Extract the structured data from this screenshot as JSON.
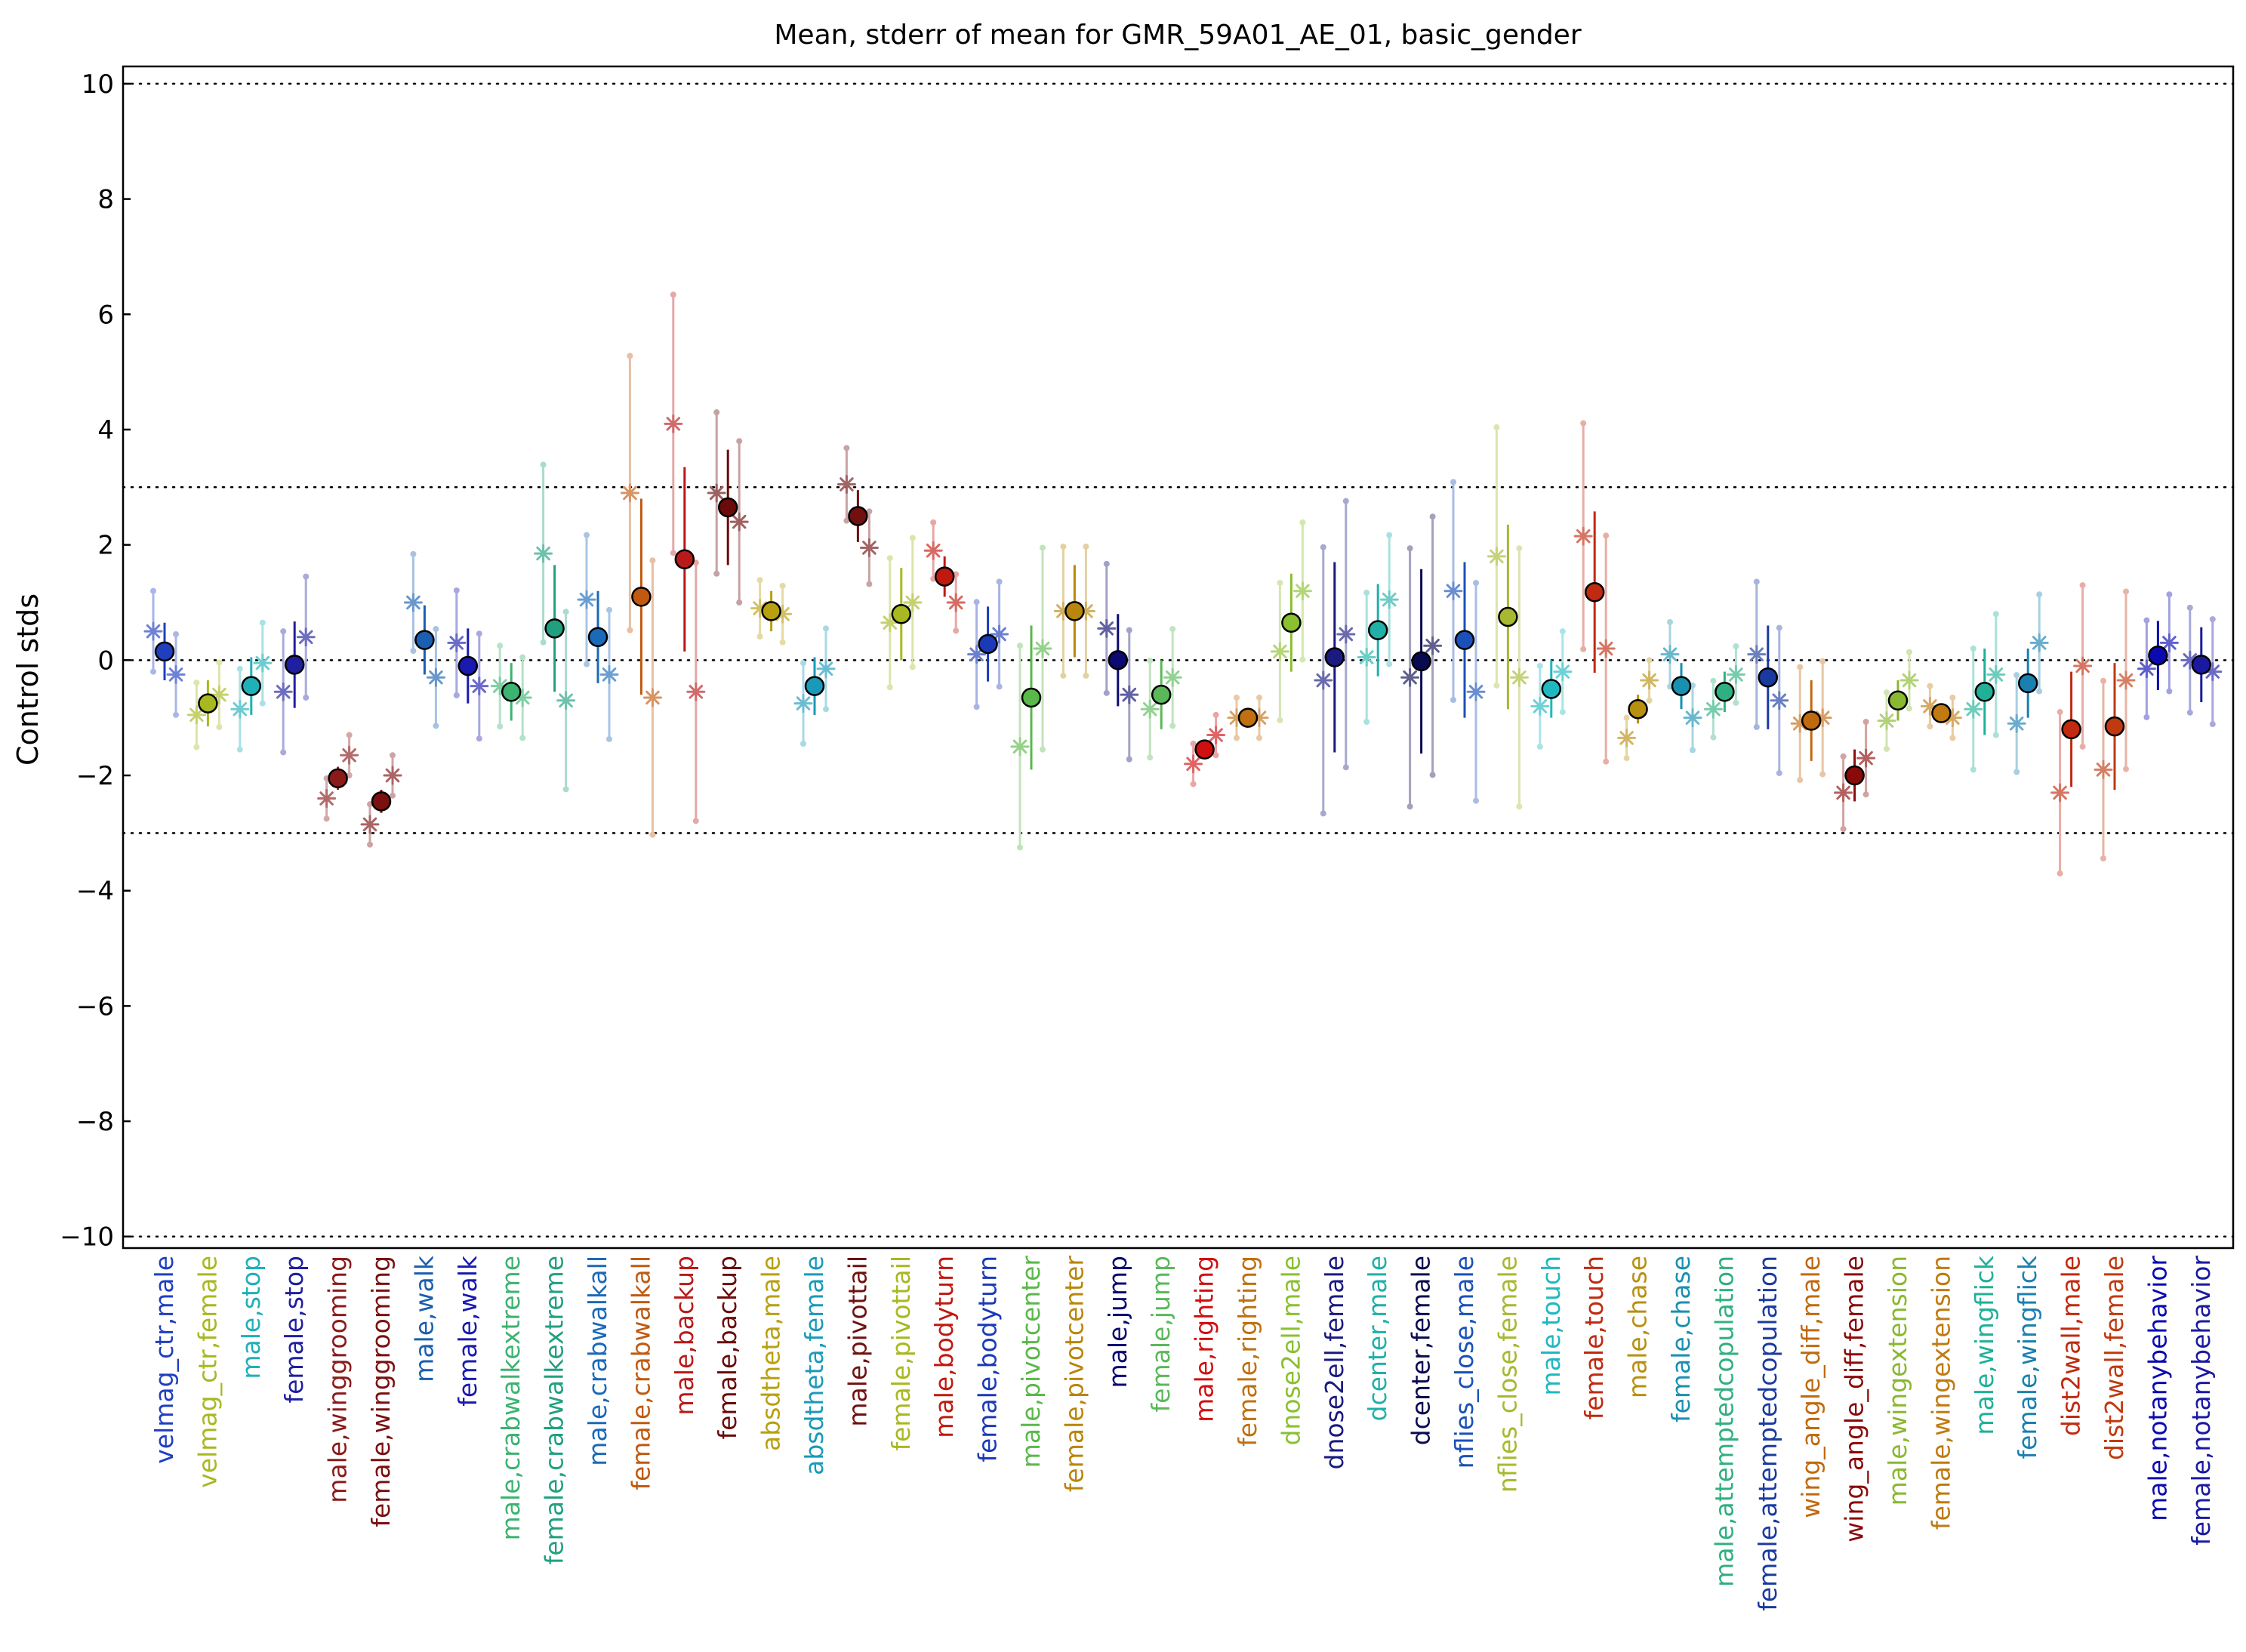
{
  "chart_data": {
    "type": "scatter",
    "title": "Mean, stderr of mean for GMR_59A01_AE_01, basic_gender",
    "ylabel": "Control stds",
    "xlabel": "",
    "ylim": [
      -10.2,
      10.3
    ],
    "yticks": [
      10,
      8,
      6,
      4,
      2,
      0,
      -2,
      -4,
      -6,
      -8,
      -10
    ],
    "ytick_labels": [
      "10",
      "8",
      "6",
      "4",
      "2",
      "0",
      "−2",
      "−4",
      "−6",
      "−8",
      "−10"
    ],
    "reference_lines": [
      10,
      3,
      0,
      -3,
      -10
    ],
    "grid": false,
    "legend": "none",
    "categories": [
      {
        "label": "velmag_ctr,male",
        "mean": 0.15,
        "sem": 0.5,
        "color": "#1f3fbf",
        "stars": [
          0.5,
          -0.25
        ]
      },
      {
        "label": "velmag_ctr,female",
        "mean": -0.75,
        "sem": 0.4,
        "color": "#a8b820",
        "stars": [
          -0.95,
          -0.6
        ]
      },
      {
        "label": "male,stop",
        "mean": -0.45,
        "sem": 0.5,
        "color": "#1fb0b8",
        "stars": [
          -0.85,
          -0.05
        ]
      },
      {
        "label": "female,stop",
        "mean": -0.08,
        "sem": 0.75,
        "color": "#1f1fa0",
        "stars": [
          -0.55,
          0.4
        ]
      },
      {
        "label": "male,winggrooming",
        "mean": -2.05,
        "sem": 0.2,
        "color": "#8b1a1a",
        "stars": [
          -2.4,
          -1.65
        ]
      },
      {
        "label": "female,winggrooming",
        "mean": -2.45,
        "sem": 0.2,
        "color": "#7a1010",
        "stars": [
          -2.85,
          -2.0
        ]
      },
      {
        "label": "male,walk",
        "mean": 0.35,
        "sem": 0.6,
        "color": "#1a5fb0",
        "stars": [
          1.0,
          -0.3
        ]
      },
      {
        "label": "female,walk",
        "mean": -0.1,
        "sem": 0.65,
        "color": "#1a1ab0",
        "stars": [
          0.3,
          -0.45
        ]
      },
      {
        "label": "male,crabwalkextreme",
        "mean": -0.55,
        "sem": 0.5,
        "color": "#3cb371",
        "stars": [
          -0.45,
          -0.65
        ]
      },
      {
        "label": "female,crabwalkextreme",
        "mean": 0.55,
        "sem": 1.1,
        "color": "#20a080",
        "stars": [
          1.85,
          -0.7
        ]
      },
      {
        "label": "male,crabwalkall",
        "mean": 0.4,
        "sem": 0.8,
        "color": "#1a6ab8",
        "stars": [
          1.05,
          -0.25
        ]
      },
      {
        "label": "female,crabwalkall",
        "mean": 1.1,
        "sem": 1.7,
        "color": "#c05a10",
        "stars": [
          2.9,
          -0.65
        ]
      },
      {
        "label": "male,backup",
        "mean": 1.75,
        "sem": 1.6,
        "color": "#b81a1a",
        "stars": [
          4.1,
          -0.55
        ]
      },
      {
        "label": "female,backup",
        "mean": 2.65,
        "sem": 1.0,
        "color": "#6a0a0a",
        "stars": [
          2.9,
          2.4
        ]
      },
      {
        "label": "absdtheta,male",
        "mean": 0.85,
        "sem": 0.35,
        "color": "#b8a010",
        "stars": [
          0.9,
          0.8
        ]
      },
      {
        "label": "absdtheta,female",
        "mean": -0.45,
        "sem": 0.5,
        "color": "#1a9ab8",
        "stars": [
          -0.75,
          -0.15
        ]
      },
      {
        "label": "male,pivottail",
        "mean": 2.5,
        "sem": 0.45,
        "color": "#701010",
        "stars": [
          3.05,
          1.95
        ]
      },
      {
        "label": "female,pivottail",
        "mean": 0.8,
        "sem": 0.8,
        "color": "#a8b820",
        "stars": [
          0.65,
          1.0
        ]
      },
      {
        "label": "male,bodyturn",
        "mean": 1.45,
        "sem": 0.35,
        "color": "#c01a10",
        "stars": [
          1.9,
          1.0
        ]
      },
      {
        "label": "female,bodyturn",
        "mean": 0.28,
        "sem": 0.65,
        "color": "#1a3ab8",
        "stars": [
          0.1,
          0.45
        ]
      },
      {
        "label": "male,pivotcenter",
        "mean": -0.65,
        "sem": 1.25,
        "color": "#5ab84a",
        "stars": [
          -1.5,
          0.2
        ]
      },
      {
        "label": "female,pivotcenter",
        "mean": 0.85,
        "sem": 0.8,
        "color": "#b8860b",
        "stars": [
          0.85,
          0.85
        ]
      },
      {
        "label": "male,jump",
        "mean": 0.0,
        "sem": 0.8,
        "color": "#0a0a70",
        "stars": [
          0.55,
          -0.6
        ]
      },
      {
        "label": "female,jump",
        "mean": -0.6,
        "sem": 0.6,
        "color": "#5ab85a",
        "stars": [
          -0.85,
          -0.3
        ]
      },
      {
        "label": "male,righting",
        "mean": -1.55,
        "sem": 0.12,
        "color": "#d01010",
        "stars": [
          -1.8,
          -1.3
        ]
      },
      {
        "label": "female,righting",
        "mean": -1.0,
        "sem": 0.12,
        "color": "#c07010",
        "stars": [
          -1.0,
          -1.0
        ]
      },
      {
        "label": "dnose2ell,male",
        "mean": 0.65,
        "sem": 0.85,
        "color": "#8ac030",
        "stars": [
          0.15,
          1.2
        ]
      },
      {
        "label": "dnose2ell,female",
        "mean": 0.05,
        "sem": 1.65,
        "color": "#1a1a80",
        "stars": [
          -0.35,
          0.45
        ]
      },
      {
        "label": "dcenter,male",
        "mean": 0.52,
        "sem": 0.8,
        "color": "#20b0a8",
        "stars": [
          0.05,
          1.05
        ]
      },
      {
        "label": "dcenter,female",
        "mean": -0.02,
        "sem": 1.6,
        "color": "#0a0a50",
        "stars": [
          -0.3,
          0.25
        ]
      },
      {
        "label": "nflies_close,male",
        "mean": 0.35,
        "sem": 1.35,
        "color": "#1a50b8",
        "stars": [
          1.2,
          -0.55
        ]
      },
      {
        "label": "nflies_close,female",
        "mean": 0.75,
        "sem": 1.6,
        "color": "#a8b830",
        "stars": [
          1.8,
          -0.3
        ]
      },
      {
        "label": "male,touch",
        "mean": -0.5,
        "sem": 0.5,
        "color": "#20b8c0",
        "stars": [
          -0.8,
          -0.2
        ]
      },
      {
        "label": "female,touch",
        "mean": 1.18,
        "sem": 1.4,
        "color": "#c02a10",
        "stars": [
          2.15,
          0.2
        ]
      },
      {
        "label": "male,chase",
        "mean": -0.85,
        "sem": 0.25,
        "color": "#b89010",
        "stars": [
          -1.35,
          -0.35
        ]
      },
      {
        "label": "female,chase",
        "mean": -0.45,
        "sem": 0.4,
        "color": "#1a90b0",
        "stars": [
          0.1,
          -1.0
        ]
      },
      {
        "label": "male,attemptedcopulation",
        "mean": -0.55,
        "sem": 0.35,
        "color": "#30b080",
        "stars": [
          -0.85,
          -0.25
        ]
      },
      {
        "label": "female,attemptedcopulation",
        "mean": -0.3,
        "sem": 0.9,
        "color": "#1a3aa0",
        "stars": [
          0.1,
          -0.7
        ]
      },
      {
        "label": "wing_angle_diff,male",
        "mean": -1.05,
        "sem": 0.7,
        "color": "#c06a10",
        "stars": [
          -1.1,
          -1.0
        ]
      },
      {
        "label": "wing_angle_diff,female",
        "mean": -2.0,
        "sem": 0.45,
        "color": "#8a0a0a",
        "stars": [
          -2.3,
          -1.7
        ]
      },
      {
        "label": "male,wingextension",
        "mean": -0.7,
        "sem": 0.35,
        "color": "#8ab830",
        "stars": [
          -1.05,
          -0.35
        ]
      },
      {
        "label": "female,wingextension",
        "mean": -0.92,
        "sem": 0.15,
        "color": "#c07a10",
        "stars": [
          -0.8,
          -1.0
        ]
      },
      {
        "label": "male,wingflick",
        "mean": -0.55,
        "sem": 0.75,
        "color": "#20b098",
        "stars": [
          -0.85,
          -0.25
        ]
      },
      {
        "label": "female,wingflick",
        "mean": -0.4,
        "sem": 0.6,
        "color": "#1a80b0",
        "stars": [
          -1.1,
          0.3
        ]
      },
      {
        "label": "dist2wall,male",
        "mean": -1.2,
        "sem": 1.0,
        "color": "#c02a10",
        "stars": [
          -2.3,
          -0.1
        ]
      },
      {
        "label": "dist2wall,female",
        "mean": -1.15,
        "sem": 1.1,
        "color": "#c03a10",
        "stars": [
          -1.9,
          -0.35
        ]
      },
      {
        "label": "male,notanybehavior",
        "mean": 0.08,
        "sem": 0.6,
        "color": "#0a0ab0",
        "stars": [
          -0.15,
          0.3
        ]
      },
      {
        "label": "female,notanybehavior",
        "mean": -0.08,
        "sem": 0.65,
        "color": "#1a1aa0",
        "stars": [
          0.0,
          -0.2
        ]
      }
    ]
  }
}
